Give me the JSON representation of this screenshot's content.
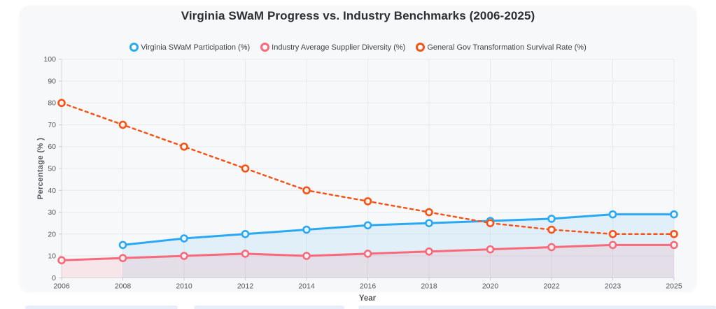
{
  "chart_data": {
    "type": "line",
    "title": "Virginia SWaM Progress vs. Industry Benchmarks (2006-2025)",
    "xlabel": "Year",
    "ylabel": "Percentage (% )",
    "categories": [
      "2006",
      "2008",
      "2010",
      "2012",
      "2014",
      "2016",
      "2018",
      "2020",
      "2022",
      "2023",
      "2025"
    ],
    "ylim": [
      0,
      100
    ],
    "ytick_step": 10,
    "grid": true,
    "legend_position": "top",
    "series": [
      {
        "name": "Virginia SWaM Participation (%)",
        "color": "#2aa9f2",
        "fill": "rgba(42,169,242,0.10)",
        "line_style": "solid",
        "line_width": 3,
        "area": true,
        "values": [
          null,
          15,
          18,
          20,
          22,
          24,
          25,
          26,
          27,
          29,
          29
        ]
      },
      {
        "name": "Industry Average Supplier Diversity (%)",
        "color": "#f8697a",
        "fill": "rgba(248,105,122,0.13)",
        "line_style": "solid",
        "line_width": 3,
        "area": true,
        "values": [
          8,
          9,
          10,
          11,
          10,
          11,
          12,
          13,
          14,
          15,
          15
        ]
      },
      {
        "name": "General Gov Transformation Survival Rate (%)",
        "color": "#f85317",
        "fill": "none",
        "line_style": "dashed",
        "line_width": 2.5,
        "area": false,
        "values": [
          80,
          70,
          60,
          50,
          40,
          35,
          30,
          25,
          22,
          20,
          20
        ]
      }
    ]
  }
}
